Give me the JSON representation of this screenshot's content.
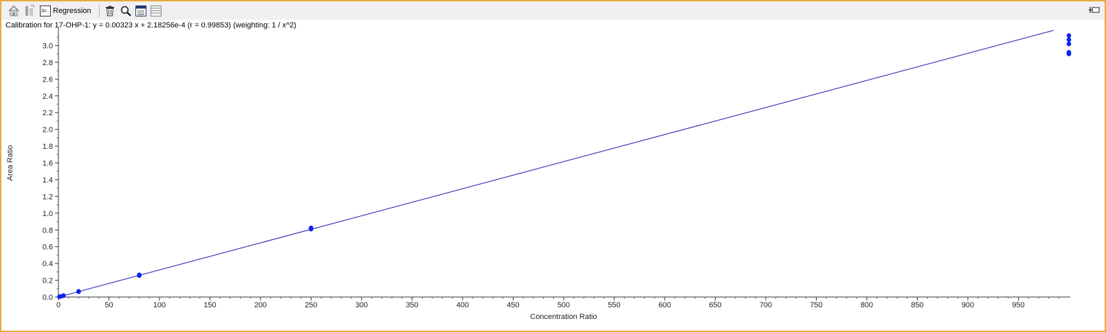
{
  "toolbar": {
    "regression_label": "Regression",
    "icons": [
      "home-icon",
      "export-icon",
      "regression-icon",
      "delete-icon",
      "zoom-icon",
      "calculator-icon",
      "table-icon",
      "pin-icon"
    ]
  },
  "caption": "Calibration for 17-OHP-1: y = 0.00323 x + 2.18256e-4 (r = 0.99853)  (weighting: 1 / x^2)",
  "colors": {
    "frame": "#e9a93a",
    "line": "#2a2ab5",
    "points": "#0b24f0"
  },
  "chart_data": {
    "type": "scatter",
    "xlabel": "Concentration Ratio",
    "ylabel": "Area Ratio",
    "xlim": [
      0,
      1000
    ],
    "ylim": [
      0,
      3.2
    ],
    "x_ticks": [
      0,
      50,
      100,
      150,
      200,
      250,
      300,
      350,
      400,
      450,
      500,
      550,
      600,
      650,
      700,
      750,
      800,
      850,
      900,
      950
    ],
    "y_ticks": [
      "0.0",
      "0.2",
      "0.4",
      "0.6",
      "0.8",
      "1.0",
      "1.2",
      "1.4",
      "1.6",
      "1.8",
      "2.0",
      "2.2",
      "2.4",
      "2.6",
      "2.8",
      "3.0"
    ],
    "fit_line": {
      "slope": 0.00323,
      "intercept": 0.000218256
    },
    "points": [
      {
        "x": 1,
        "y": 0.003
      },
      {
        "x": 2,
        "y": 0.006
      },
      {
        "x": 5,
        "y": 0.015
      },
      {
        "x": 5,
        "y": 0.018
      },
      {
        "x": 20,
        "y": 0.063
      },
      {
        "x": 20,
        "y": 0.068
      },
      {
        "x": 80,
        "y": 0.255
      },
      {
        "x": 80,
        "y": 0.265
      },
      {
        "x": 250,
        "y": 0.81
      },
      {
        "x": 250,
        "y": 0.825
      },
      {
        "x": 1000,
        "y": 2.9
      },
      {
        "x": 1000,
        "y": 2.92
      },
      {
        "x": 1000,
        "y": 3.02
      },
      {
        "x": 1000,
        "y": 3.07
      },
      {
        "x": 1000,
        "y": 3.12
      }
    ]
  }
}
